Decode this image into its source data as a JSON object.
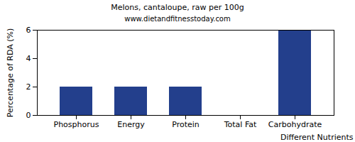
{
  "chart_data": {
    "type": "bar",
    "title": "Melons, cantaloupe, raw per 100g",
    "subtitle": "www.dietandfitnesstoday.com",
    "categories": [
      "Phosphorus",
      "Energy",
      "Protein",
      "Total Fat",
      "Carbohydrate"
    ],
    "values": [
      2,
      2,
      2,
      0,
      6
    ],
    "color": "#233f8c",
    "ylim": [
      0,
      6
    ],
    "yticks": [
      0,
      2,
      4,
      6
    ],
    "xlabel": "Different Nutrients",
    "ylabel": "Percentage of RDA (%)",
    "grid": false
  }
}
